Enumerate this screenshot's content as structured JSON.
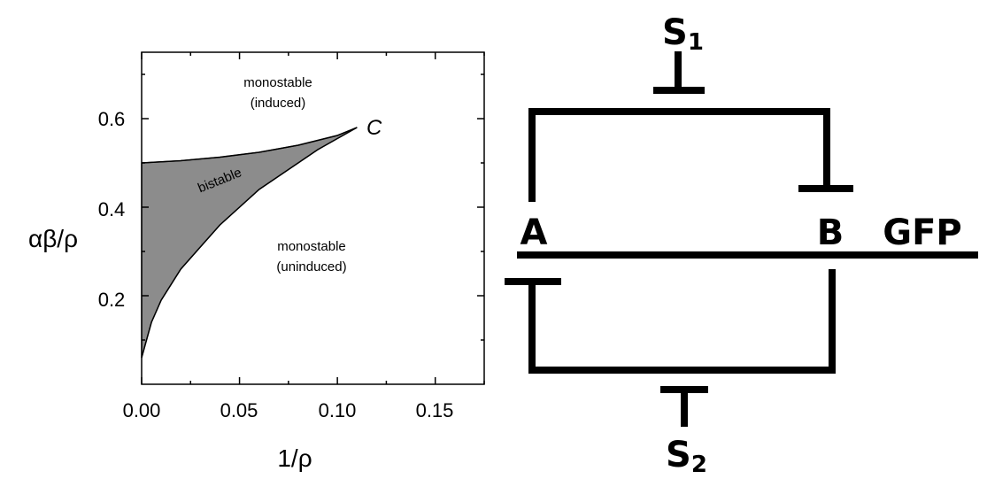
{
  "chart_data": {
    "type": "area",
    "title": "",
    "xlabel": "1/ρ",
    "ylabel": "αβ/ρ",
    "xlim": [
      0,
      0.175
    ],
    "ylim": [
      0,
      0.75
    ],
    "x_ticks": [
      "0.00",
      "0.05",
      "0.10",
      "0.15"
    ],
    "y_ticks": [
      "0.2",
      "0.4",
      "0.6"
    ],
    "grid": false,
    "series": [
      {
        "role": "upper-boundary",
        "fill": "#8c8c8c",
        "x": [
          0.0,
          0.02,
          0.04,
          0.06,
          0.08,
          0.1,
          0.11
        ],
        "y": [
          0.5,
          0.505,
          0.513,
          0.524,
          0.54,
          0.562,
          0.58
        ]
      },
      {
        "role": "lower-boundary",
        "fill": "#8c8c8c",
        "x": [
          0.0,
          0.005,
          0.01,
          0.02,
          0.03,
          0.04,
          0.05,
          0.06,
          0.07,
          0.08,
          0.09,
          0.1,
          0.11
        ],
        "y": [
          0.06,
          0.14,
          0.19,
          0.26,
          0.31,
          0.36,
          0.4,
          0.44,
          0.47,
          0.5,
          0.53,
          0.555,
          0.58
        ]
      }
    ],
    "annotations": {
      "induced_line1": "monostable",
      "induced_line2": "(induced)",
      "bistable": "bistable",
      "uninduced_line1": "monostable",
      "uninduced_line2": "(uninduced)",
      "critical_point": "C"
    }
  },
  "circuit": {
    "node_a": "A",
    "node_b": "B",
    "reporter": "GFP",
    "signal_1": "S",
    "signal_1_sub": "1",
    "signal_2": "S",
    "signal_2_sub": "2"
  }
}
